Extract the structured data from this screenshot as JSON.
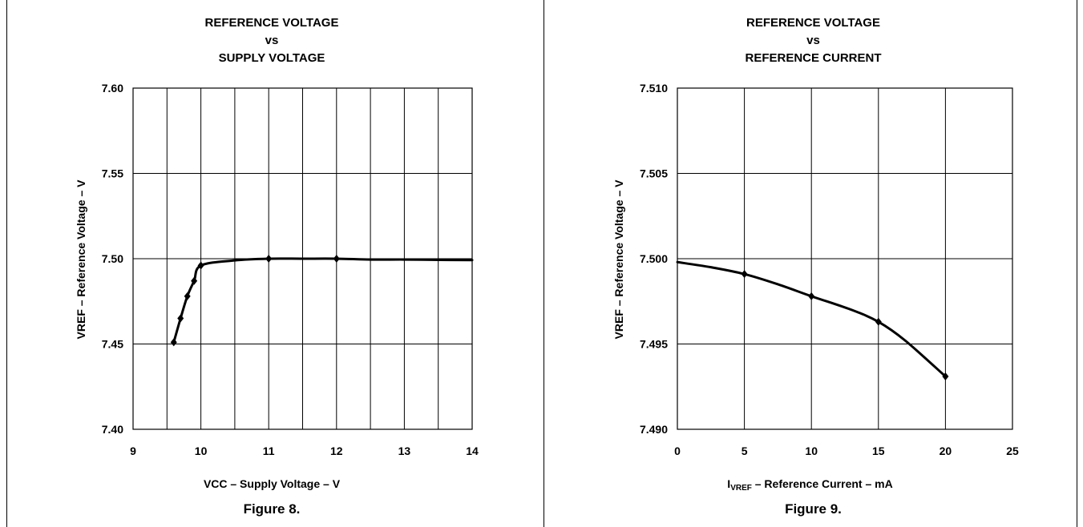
{
  "chart_data": [
    {
      "type": "line",
      "title": [
        "REFERENCE VOLTAGE",
        "vs",
        "SUPPLY VOLTAGE"
      ],
      "xlabel": "VCC – Supply Voltage – V",
      "ylabel": "VREF – Reference Voltage – V",
      "caption": "Figure 8.",
      "xlim": [
        9,
        14
      ],
      "ylim": [
        7.4,
        7.6
      ],
      "xticks": [
        9,
        10,
        11,
        12,
        13,
        14
      ],
      "xtick_labels": [
        "9",
        "10",
        "11",
        "12",
        "13",
        "14"
      ],
      "yticks": [
        7.4,
        7.45,
        7.5,
        7.55,
        7.6
      ],
      "ytick_labels": [
        "7.40",
        "7.45",
        "7.50",
        "7.55",
        "7.60"
      ],
      "xgrid": [
        9.5,
        10,
        10.5,
        11,
        11.5,
        12,
        12.5,
        13,
        13.5
      ],
      "grid": true,
      "series": [
        {
          "x": [
            9.6,
            9.7,
            9.8,
            9.9,
            10.0,
            10.5,
            11.0,
            11.5,
            12.0,
            12.5,
            13.0,
            13.5,
            14.0
          ],
          "y": [
            7.451,
            7.465,
            7.478,
            7.487,
            7.496,
            7.499,
            7.5,
            7.5,
            7.5,
            7.4995,
            7.4995,
            7.4993,
            7.4992
          ],
          "markers": [
            9.6,
            9.7,
            9.8,
            9.9,
            10.0,
            11.0,
            12.0
          ]
        }
      ]
    },
    {
      "type": "line",
      "title": [
        "REFERENCE VOLTAGE",
        "vs",
        "REFERENCE CURRENT"
      ],
      "xlabel_main": "I",
      "xlabel_sub": "VREF",
      "xlabel_rest": " – Reference Current – mA",
      "ylabel": "VREF – Reference Voltage – V",
      "caption": "Figure 9.",
      "xlim": [
        0,
        25
      ],
      "ylim": [
        7.49,
        7.51
      ],
      "xticks": [
        0,
        5,
        10,
        15,
        20,
        25
      ],
      "xtick_labels": [
        "0",
        "5",
        "10",
        "15",
        "20",
        "25"
      ],
      "yticks": [
        7.49,
        7.495,
        7.5,
        7.505,
        7.51
      ],
      "ytick_labels": [
        "7.490",
        "7.495",
        "7.500",
        "7.505",
        "7.510"
      ],
      "xgrid": [
        5,
        10,
        15,
        20
      ],
      "grid": true,
      "series": [
        {
          "x": [
            0,
            2.5,
            5,
            7.5,
            10,
            13,
            15,
            17,
            20
          ],
          "y": [
            7.4998,
            7.4995,
            7.4991,
            7.4985,
            7.4978,
            7.497,
            7.4963,
            7.4952,
            7.4931
          ],
          "markers": [
            5,
            10,
            15,
            20
          ]
        }
      ]
    }
  ]
}
